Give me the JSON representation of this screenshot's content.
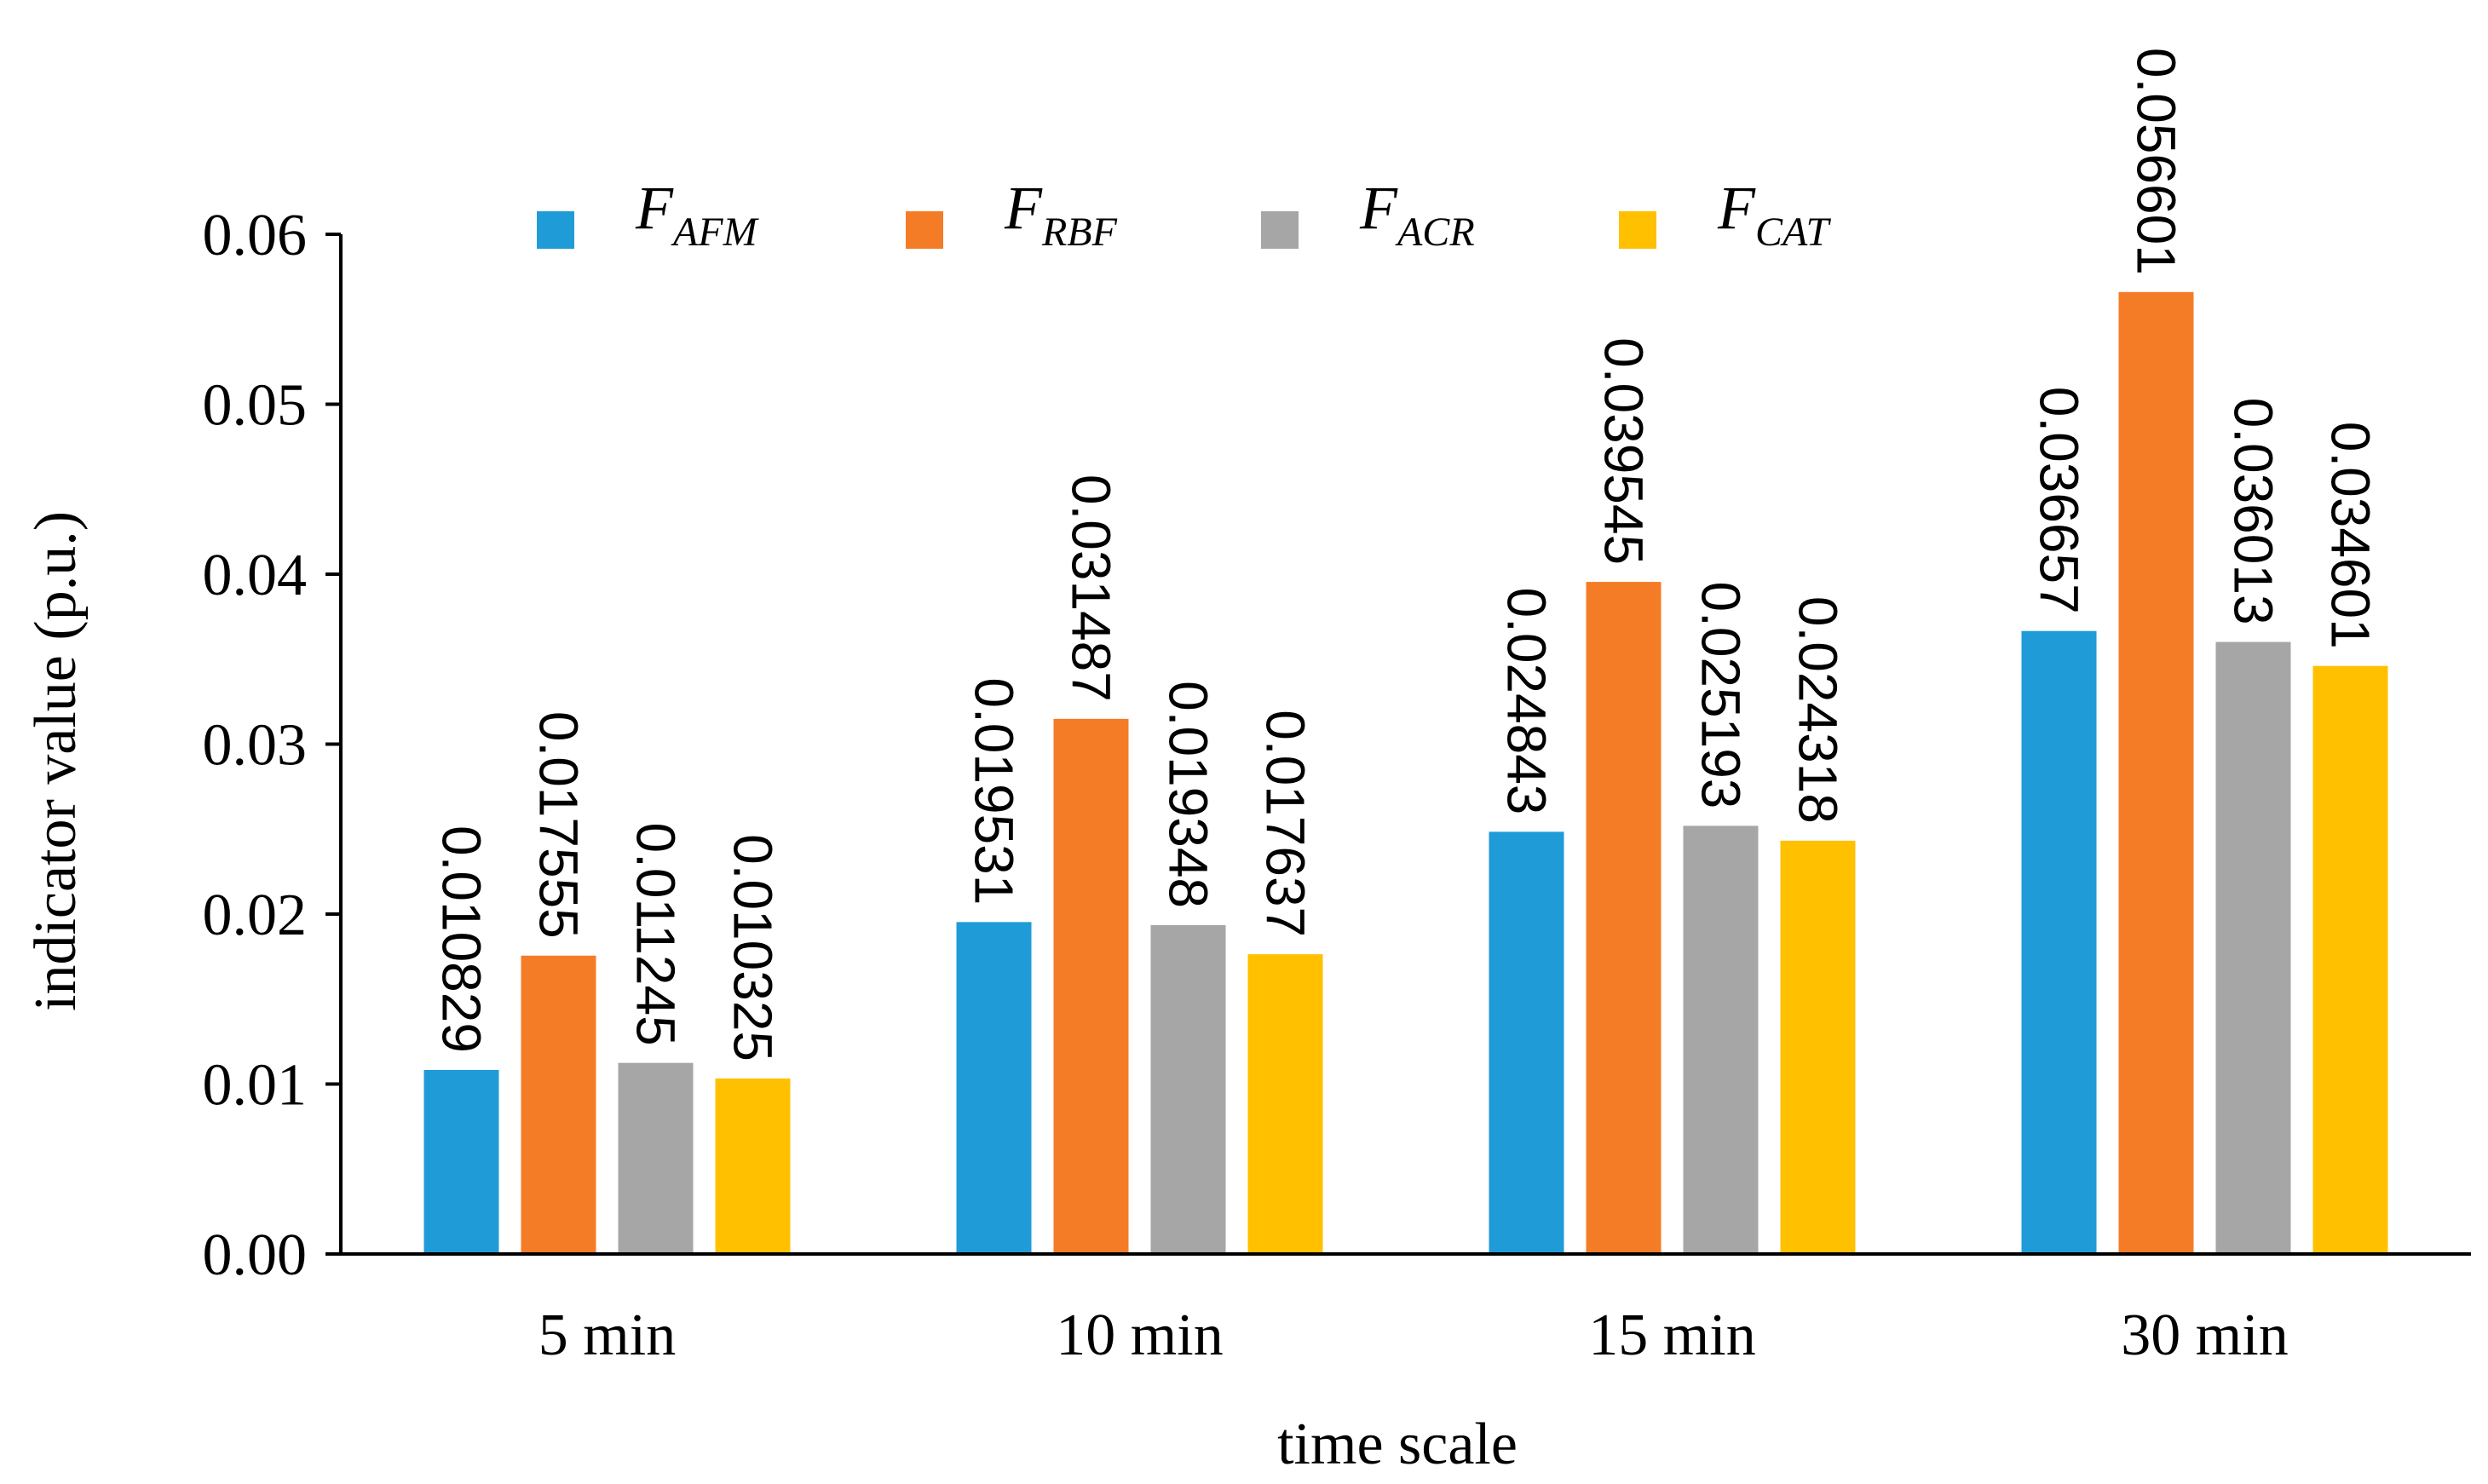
{
  "chart_data": {
    "type": "bar",
    "categories": [
      "5 min",
      "10 min",
      "15 min",
      "30 min"
    ],
    "series": [
      {
        "name": "F",
        "sub": "AFM",
        "color": "#1F9BD7",
        "values": [
          0.010829,
          0.019531,
          0.024843,
          0.036657
        ]
      },
      {
        "name": "F",
        "sub": "RBF",
        "color": "#F57C27",
        "values": [
          0.017555,
          0.031487,
          0.039545,
          0.056601
        ]
      },
      {
        "name": "F",
        "sub": "ACR",
        "color": "#A6A6A6",
        "values": [
          0.011245,
          0.019348,
          0.025193,
          0.036013
        ]
      },
      {
        "name": "F",
        "sub": "CAT",
        "color": "#FFC000",
        "values": [
          0.010325,
          0.017637,
          0.024318,
          0.034601
        ]
      }
    ],
    "data_labels": [
      [
        "0.010829",
        "0.019531",
        "0.024843",
        "0.036657"
      ],
      [
        "0.017555",
        "0.031487",
        "0.039545",
        "0.056601"
      ],
      [
        "0.011245",
        "0.019348",
        "0.025193",
        "0.036013"
      ],
      [
        "0.010325",
        "0.017637",
        "0.024318",
        "0.034601"
      ]
    ],
    "yticks": [
      "0.00",
      "0.01",
      "0.02",
      "0.03",
      "0.04",
      "0.05",
      "0.06"
    ],
    "ylim": [
      0,
      0.06
    ],
    "xlabel": "time scale",
    "ylabel": "indicator value (p.u.)",
    "title": "",
    "legend": "top"
  }
}
